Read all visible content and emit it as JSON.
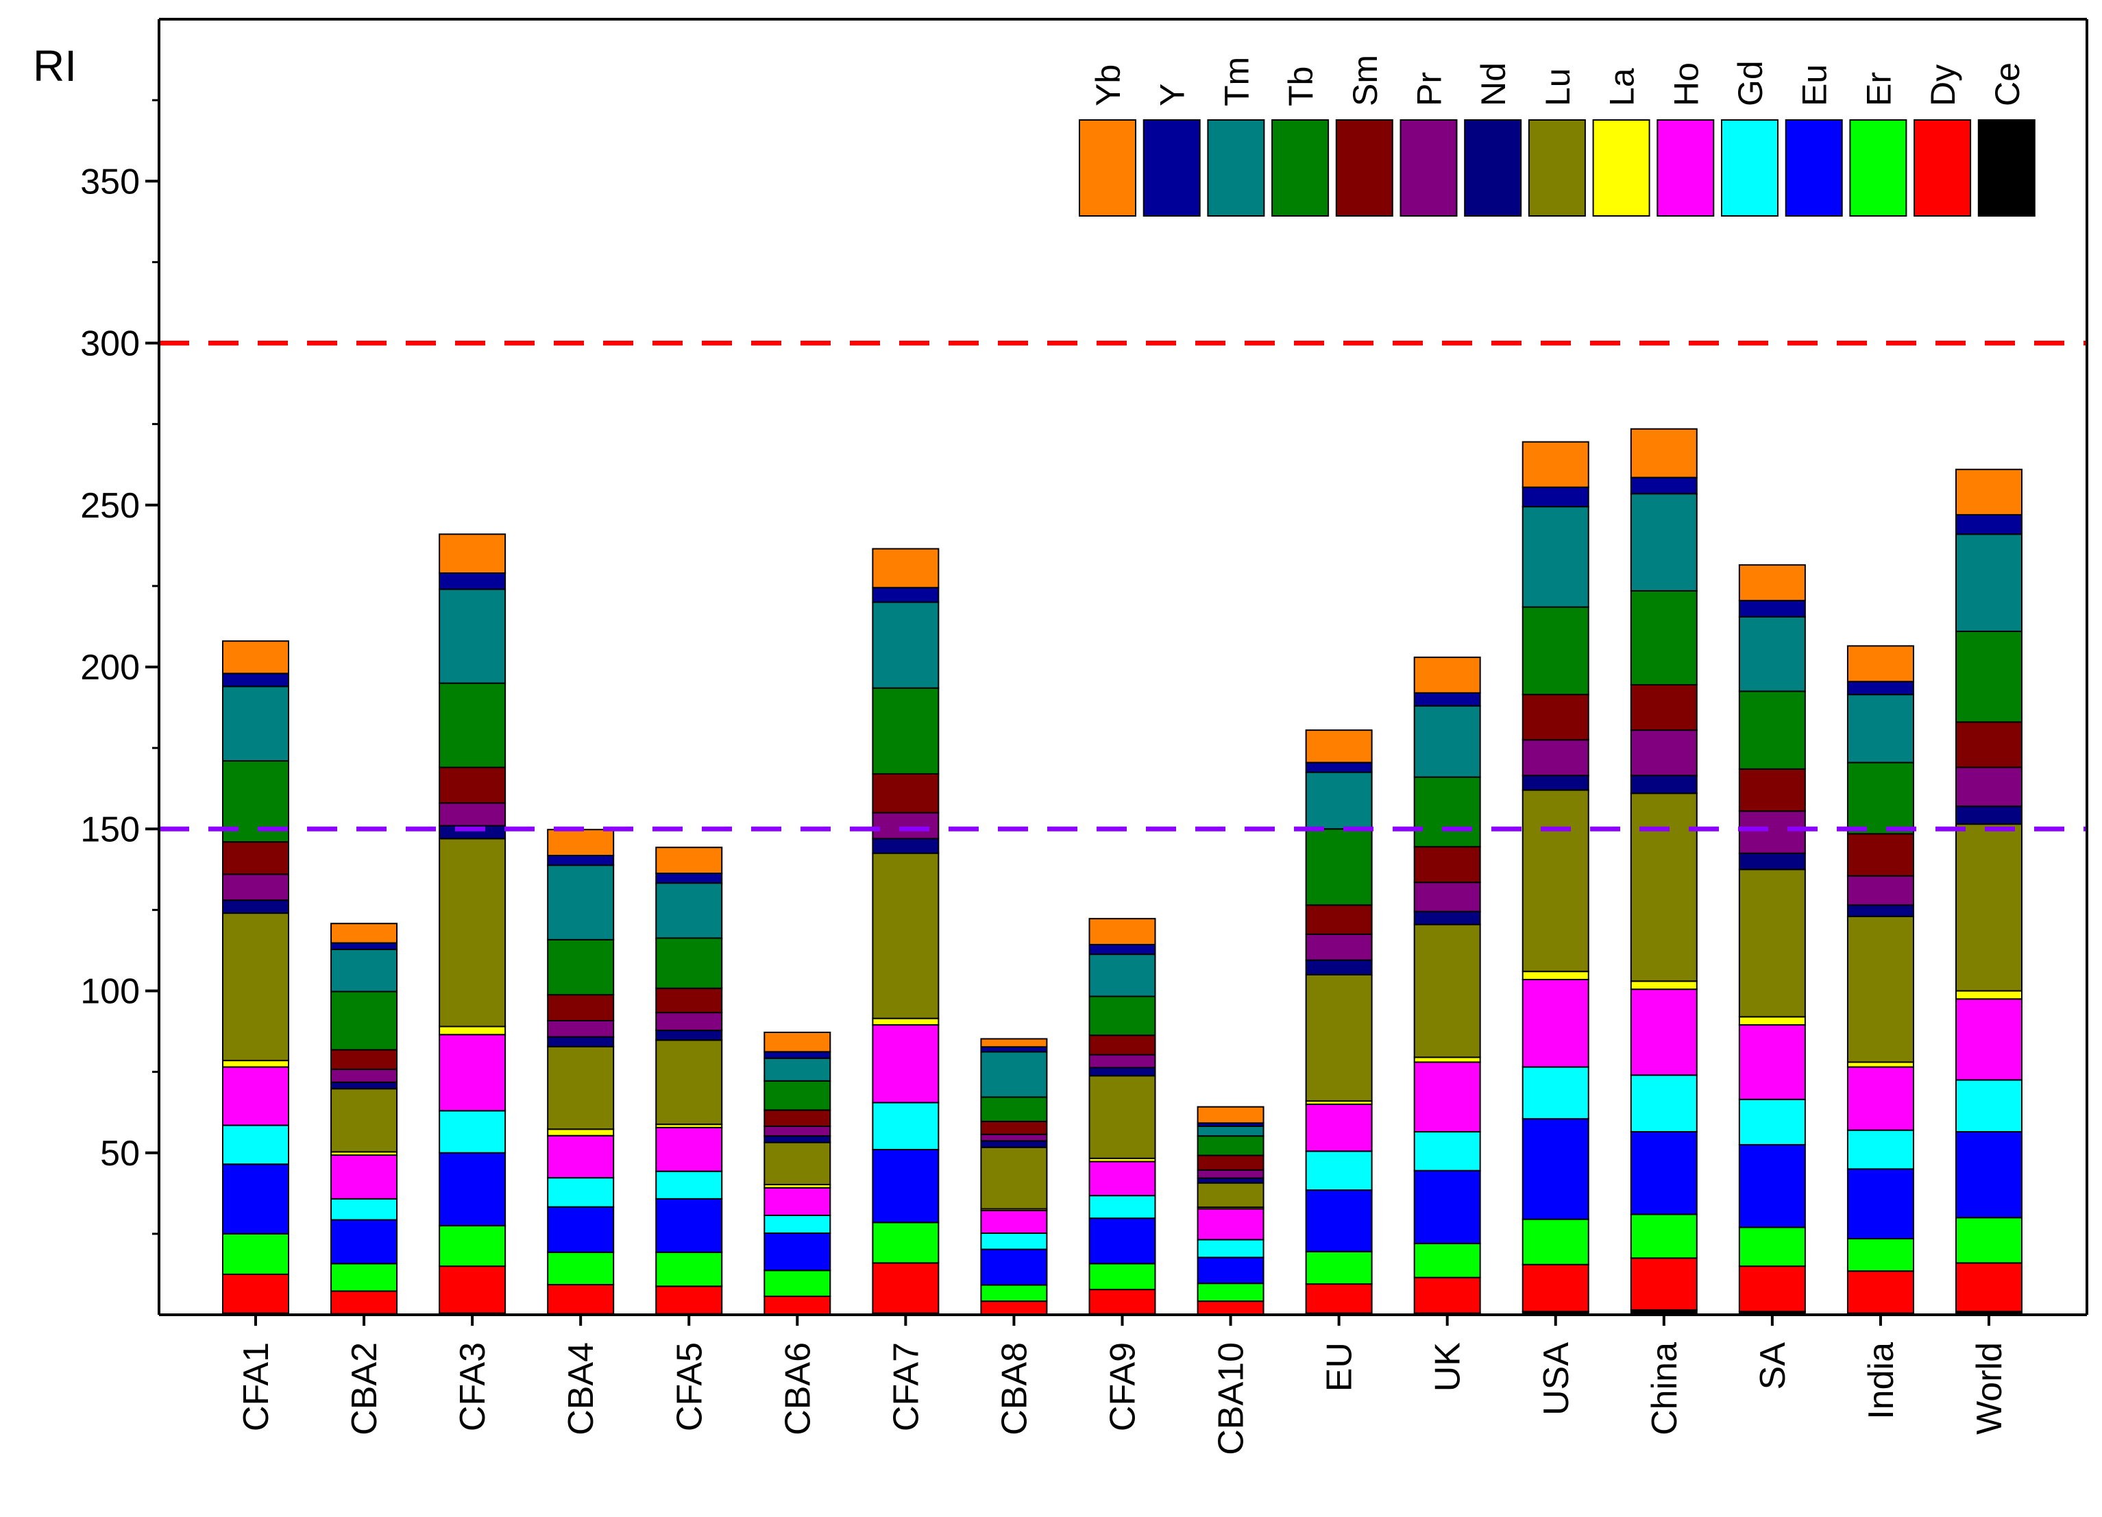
{
  "chart_data": {
    "type": "bar",
    "stacked": true,
    "title": "",
    "xlabel": "",
    "ylabel": "RI",
    "ylim": [
      0,
      400
    ],
    "yticks": [
      50,
      100,
      150,
      200,
      250,
      300,
      350
    ],
    "legend_position": "top-right",
    "reference_lines": [
      {
        "value": 300,
        "color": "#ff0000",
        "style": "dashed"
      },
      {
        "value": 150,
        "color": "#8b00ff",
        "style": "dashed"
      }
    ],
    "categories": [
      "CFA1",
      "CBA2",
      "CFA3",
      "CBA4",
      "CFA5",
      "CBA6",
      "CFA7",
      "CBA8",
      "CFA9",
      "CBA10",
      "EU",
      "UK",
      "USA",
      "China",
      "SA",
      "India",
      "World"
    ],
    "series": [
      {
        "name": "Ce",
        "color": "#000000",
        "values": [
          0.5,
          0.3,
          0.5,
          0.3,
          0.3,
          0.2,
          0.5,
          0.2,
          0.3,
          0.2,
          0.5,
          0.5,
          1,
          1.5,
          1,
          0.5,
          1
        ]
      },
      {
        "name": "Dy",
        "color": "#ff0000",
        "values": [
          12,
          7,
          14.5,
          9,
          8.5,
          5.5,
          15.5,
          4,
          7.5,
          4,
          9,
          11,
          14.5,
          16,
          14,
          13,
          15
        ]
      },
      {
        "name": "Er",
        "color": "#00ff00",
        "values": [
          12.5,
          8.5,
          12.5,
          10,
          10.5,
          8,
          12.5,
          5,
          8,
          5.5,
          10,
          10.5,
          14,
          13.5,
          12,
          10,
          14
        ]
      },
      {
        "name": "Eu",
        "color": "#0000ff",
        "values": [
          21.5,
          13.5,
          22.5,
          14,
          16.5,
          11.5,
          22.5,
          11,
          14,
          8,
          19,
          22.5,
          31,
          25.5,
          25.5,
          21.5,
          26.5
        ]
      },
      {
        "name": "Gd",
        "color": "#00ffff",
        "values": [
          12,
          6.5,
          13,
          9,
          8.5,
          5.5,
          14.5,
          5,
          7,
          5.5,
          12,
          12,
          16,
          17.5,
          14,
          12,
          16
        ]
      },
      {
        "name": "Ho",
        "color": "#ff00ff",
        "values": [
          18,
          13.5,
          23.5,
          13,
          13.5,
          8.5,
          24,
          7,
          10.5,
          9.5,
          14.5,
          21.5,
          27,
          26.5,
          23,
          19.5,
          25
        ]
      },
      {
        "name": "La",
        "color": "#ffff00",
        "values": [
          2,
          1,
          2.5,
          2,
          1,
          1,
          2,
          0.5,
          1,
          0.5,
          1,
          1.5,
          2.5,
          2.5,
          2.5,
          1.5,
          2.5
        ]
      },
      {
        "name": "Lu",
        "color": "#808000",
        "values": [
          45.5,
          19.5,
          58,
          25.5,
          26,
          13,
          51,
          19,
          25.5,
          7.5,
          39,
          41,
          56,
          58,
          45.5,
          45,
          51.5
        ]
      },
      {
        "name": "Nd",
        "color": "#000080",
        "values": [
          4,
          2,
          4,
          3,
          3,
          2,
          4.5,
          2,
          2.5,
          1.5,
          4.5,
          4,
          4.5,
          5.5,
          5,
          3.5,
          5.5
        ]
      },
      {
        "name": "Pr",
        "color": "#800080",
        "values": [
          8,
          4,
          7,
          5,
          5.5,
          3,
          8,
          2,
          4,
          2.5,
          8,
          9,
          11,
          14,
          13,
          9,
          12
        ]
      },
      {
        "name": "Sm",
        "color": "#800000",
        "values": [
          10,
          6,
          11,
          8,
          7.5,
          5,
          12,
          4,
          6,
          4.5,
          9,
          11,
          14,
          14,
          13,
          13,
          14
        ]
      },
      {
        "name": "Tb",
        "color": "#008000",
        "values": [
          25,
          18,
          26,
          17,
          15.5,
          9,
          26.5,
          7.5,
          12,
          6,
          23.5,
          21.5,
          27,
          29,
          24,
          22,
          28
        ]
      },
      {
        "name": "Tm",
        "color": "#008080",
        "values": [
          23,
          13,
          29,
          23,
          17,
          7,
          26.5,
          14,
          13,
          3,
          17.5,
          22,
          31,
          30,
          23,
          21,
          30
        ]
      },
      {
        "name": "Y",
        "color": "#000099",
        "values": [
          4,
          2,
          5,
          3,
          3,
          2,
          4.5,
          1.5,
          3,
          1,
          3,
          4,
          6,
          5,
          5,
          4,
          6
        ]
      },
      {
        "name": "Yb",
        "color": "#ff8000",
        "values": [
          10,
          6,
          12,
          8,
          8,
          6,
          12,
          2.5,
          8,
          5,
          10,
          11,
          14,
          15,
          11,
          11,
          14
        ]
      }
    ],
    "legend_order": [
      "Yb",
      "Y",
      "Tm",
      "Tb",
      "Sm",
      "Pr",
      "Nd",
      "Lu",
      "La",
      "Ho",
      "Gd",
      "Eu",
      "Er",
      "Dy",
      "Ce"
    ]
  }
}
